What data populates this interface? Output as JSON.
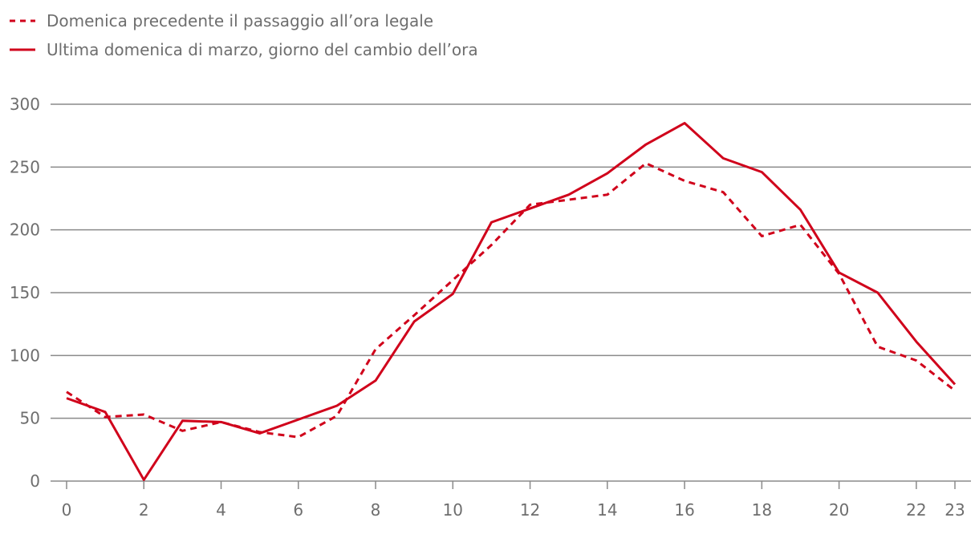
{
  "chart_data": {
    "type": "line",
    "title": "",
    "xlabel": "",
    "ylabel": "",
    "xlim": [
      0,
      23
    ],
    "ylim": [
      0,
      300
    ],
    "yticks": [
      0,
      50,
      100,
      150,
      200,
      250,
      300
    ],
    "xticks": [
      0,
      2,
      4,
      6,
      8,
      10,
      12,
      14,
      16,
      18,
      20,
      22,
      23
    ],
    "grid": "horizontal",
    "legend_position": "top-left",
    "x": [
      0,
      1,
      2,
      3,
      4,
      5,
      6,
      7,
      8,
      9,
      10,
      11,
      12,
      13,
      14,
      15,
      16,
      17,
      18,
      19,
      20,
      21,
      22,
      23
    ],
    "series": [
      {
        "name": "Domenica precedente il passaggio all’ora legale",
        "style": "dashed",
        "color": "#d0021b",
        "values": [
          71,
          51,
          53,
          40,
          47,
          39,
          35,
          52,
          105,
          132,
          160,
          188,
          220,
          224,
          228,
          253,
          239,
          230,
          195,
          204,
          165,
          107,
          96,
          72
        ]
      },
      {
        "name": "Ultima domenica di marzo, giorno del cambio dell’ora",
        "style": "solid",
        "color": "#d0021b",
        "values": [
          66,
          55,
          1,
          48,
          47,
          38,
          49,
          60,
          80,
          127,
          149,
          206,
          217,
          228,
          245,
          268,
          285,
          257,
          246,
          216,
          166,
          150,
          111,
          77
        ]
      }
    ]
  }
}
